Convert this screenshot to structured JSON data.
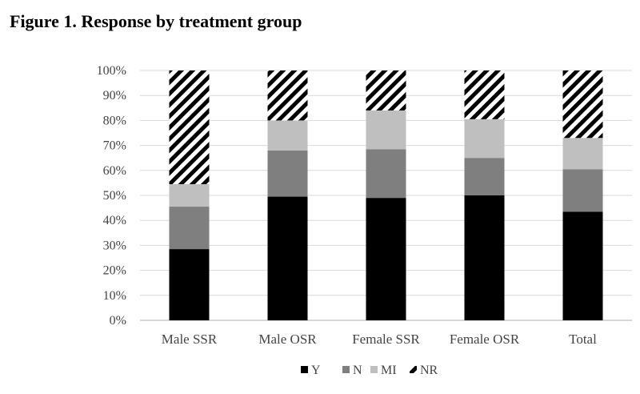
{
  "figure_title": "Figure 1. Response by treatment group",
  "chart_data": {
    "type": "bar",
    "stacked": true,
    "title": "Figure 1. Response by treatment group",
    "xlabel": "",
    "ylabel": "",
    "ylim": [
      0,
      100
    ],
    "y_tick_labels": [
      "0%",
      "10%",
      "20%",
      "30%",
      "40%",
      "50%",
      "60%",
      "70%",
      "80%",
      "90%",
      "100%"
    ],
    "grid": true,
    "legend_position": "bottom",
    "categories": [
      "Male SSR",
      "Male OSR",
      "Female SSR",
      "Female OSR",
      "Total"
    ],
    "series": [
      {
        "name": "Y",
        "color": "#000000",
        "pattern": "solid",
        "values": [
          28.5,
          49.5,
          49,
          50,
          43.5
        ]
      },
      {
        "name": "N",
        "color": "#7f7f7f",
        "pattern": "solid",
        "values": [
          17,
          18.5,
          19.5,
          15,
          17
        ]
      },
      {
        "name": "MI",
        "color": "#bfbfbf",
        "pattern": "solid",
        "values": [
          9,
          12,
          15.5,
          15.5,
          12.5
        ]
      },
      {
        "name": "NR",
        "color": "#000000",
        "pattern": "hatch",
        "values": [
          45.5,
          20,
          16,
          19.5,
          27
        ]
      }
    ]
  }
}
